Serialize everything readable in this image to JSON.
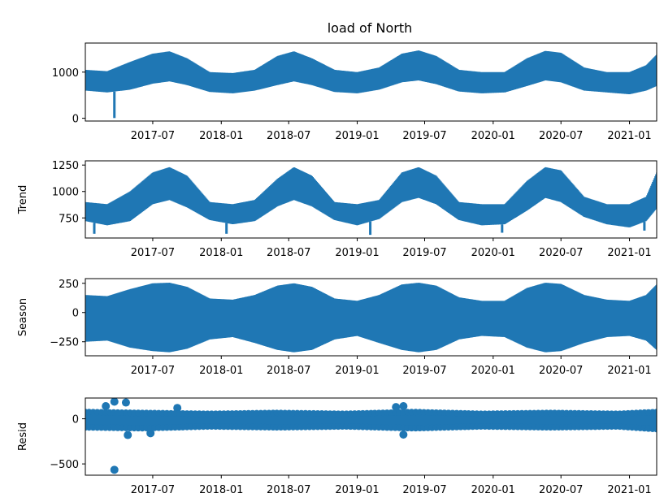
{
  "chart_data": [
    {
      "panel": "observed",
      "type": "line",
      "title": "load of North",
      "ylabel": "",
      "color": "#1f77b4",
      "xlim": [
        "2017-01-01",
        "2021-03-15"
      ],
      "ylim": [
        -60,
        1630
      ],
      "yticks": [
        0,
        1000
      ],
      "ytick_labels": [
        "0",
        "1000"
      ],
      "xticks": [
        "2017-07-01",
        "2018-01-01",
        "2018-07-01",
        "2019-01-01",
        "2019-07-01",
        "2020-01-01",
        "2020-07-01",
        "2021-01-01"
      ],
      "xtick_labels": [
        "2017-07",
        "2018-01",
        "2018-07",
        "2019-01",
        "2019-07",
        "2020-01",
        "2020-07",
        "2021-01"
      ],
      "band": {
        "x": [
          "2017-01-01",
          "2017-03-01",
          "2017-05-01",
          "2017-07-01",
          "2017-08-15",
          "2017-10-01",
          "2017-12-01",
          "2018-02-01",
          "2018-04-01",
          "2018-06-01",
          "2018-07-15",
          "2018-09-01",
          "2018-11-01",
          "2019-01-01",
          "2019-03-01",
          "2019-05-01",
          "2019-06-15",
          "2019-08-01",
          "2019-10-01",
          "2019-12-01",
          "2020-02-01",
          "2020-04-01",
          "2020-05-20",
          "2020-07-01",
          "2020-09-01",
          "2020-11-01",
          "2021-01-01",
          "2021-02-15",
          "2021-03-15"
        ],
        "upper": [
          1050,
          1020,
          1220,
          1400,
          1450,
          1300,
          1000,
          980,
          1050,
          1350,
          1450,
          1300,
          1050,
          1000,
          1100,
          1400,
          1470,
          1350,
          1050,
          1000,
          1000,
          1300,
          1460,
          1420,
          1100,
          1000,
          1000,
          1150,
          1380
        ],
        "lower": [
          600,
          560,
          620,
          750,
          800,
          720,
          570,
          540,
          600,
          720,
          800,
          720,
          570,
          540,
          620,
          780,
          820,
          740,
          580,
          540,
          560,
          700,
          820,
          780,
          600,
          560,
          520,
          600,
          700
        ]
      },
      "spikes": [
        {
          "x": "2017-03-20",
          "y": 5
        }
      ]
    },
    {
      "panel": "trend",
      "type": "line",
      "title": "",
      "ylabel": "Trend",
      "color": "#1f77b4",
      "xlim": [
        "2017-01-01",
        "2021-03-15"
      ],
      "ylim": [
        560,
        1290
      ],
      "yticks": [
        750,
        1000,
        1250
      ],
      "ytick_labels": [
        "750",
        "1000",
        "1250"
      ],
      "xticks": [
        "2017-07-01",
        "2018-01-01",
        "2018-07-01",
        "2019-01-01",
        "2019-07-01",
        "2020-01-01",
        "2020-07-01",
        "2021-01-01"
      ],
      "xtick_labels": [
        "2017-07",
        "2018-01",
        "2018-07",
        "2019-01",
        "2019-07",
        "2020-01",
        "2020-07",
        "2021-01"
      ],
      "band": {
        "x": [
          "2017-01-01",
          "2017-03-01",
          "2017-05-01",
          "2017-07-01",
          "2017-08-15",
          "2017-10-01",
          "2017-12-01",
          "2018-02-01",
          "2018-04-01",
          "2018-06-01",
          "2018-07-15",
          "2018-09-01",
          "2018-11-01",
          "2019-01-01",
          "2019-03-01",
          "2019-05-01",
          "2019-06-15",
          "2019-08-01",
          "2019-10-01",
          "2019-12-01",
          "2020-02-01",
          "2020-04-01",
          "2020-05-20",
          "2020-07-01",
          "2020-09-01",
          "2020-11-01",
          "2021-01-01",
          "2021-02-15",
          "2021-03-15"
        ],
        "upper": [
          900,
          880,
          1000,
          1180,
          1230,
          1150,
          900,
          880,
          920,
          1120,
          1230,
          1150,
          900,
          880,
          920,
          1180,
          1230,
          1150,
          900,
          880,
          880,
          1100,
          1230,
          1200,
          950,
          880,
          880,
          950,
          1180
        ],
        "lower": [
          720,
          680,
          720,
          880,
          920,
          850,
          730,
          690,
          720,
          860,
          920,
          860,
          730,
          680,
          740,
          900,
          940,
          880,
          730,
          680,
          690,
          820,
          940,
          900,
          760,
          690,
          660,
          720,
          840
        ]
      },
      "spikes": [
        {
          "x": "2017-01-25",
          "y": 600
        },
        {
          "x": "2018-01-15",
          "y": 600
        },
        {
          "x": "2019-02-05",
          "y": 590
        },
        {
          "x": "2020-01-25",
          "y": 610
        },
        {
          "x": "2021-02-10",
          "y": 630
        }
      ]
    },
    {
      "panel": "season",
      "type": "line",
      "title": "",
      "ylabel": "Season",
      "color": "#1f77b4",
      "xlim": [
        "2017-01-01",
        "2021-03-15"
      ],
      "ylim": [
        -370,
        290
      ],
      "yticks": [
        -250,
        0,
        250
      ],
      "ytick_labels": [
        "−250",
        "0",
        "250"
      ],
      "xticks": [
        "2017-07-01",
        "2018-01-01",
        "2018-07-01",
        "2019-01-01",
        "2019-07-01",
        "2020-01-01",
        "2020-07-01",
        "2021-01-01"
      ],
      "xtick_labels": [
        "2017-07",
        "2018-01",
        "2018-07",
        "2019-01",
        "2019-07",
        "2020-01",
        "2020-07",
        "2021-01"
      ],
      "band": {
        "x": [
          "2017-01-01",
          "2017-03-01",
          "2017-05-01",
          "2017-07-01",
          "2017-08-15",
          "2017-10-01",
          "2017-12-01",
          "2018-02-01",
          "2018-04-01",
          "2018-06-01",
          "2018-07-15",
          "2018-09-01",
          "2018-11-01",
          "2019-01-01",
          "2019-03-01",
          "2019-05-01",
          "2019-06-15",
          "2019-08-01",
          "2019-10-01",
          "2019-12-01",
          "2020-02-01",
          "2020-04-01",
          "2020-05-20",
          "2020-07-01",
          "2020-09-01",
          "2020-11-01",
          "2021-01-01",
          "2021-02-15",
          "2021-03-15"
        ],
        "upper": [
          150,
          140,
          200,
          250,
          255,
          220,
          120,
          110,
          150,
          230,
          250,
          220,
          120,
          100,
          150,
          240,
          255,
          230,
          130,
          100,
          100,
          210,
          255,
          245,
          150,
          110,
          100,
          150,
          240
        ],
        "lower": [
          -250,
          -240,
          -300,
          -330,
          -340,
          -310,
          -230,
          -210,
          -260,
          -320,
          -340,
          -320,
          -230,
          -200,
          -260,
          -320,
          -340,
          -320,
          -230,
          -200,
          -210,
          -300,
          -340,
          -330,
          -260,
          -210,
          -200,
          -240,
          -320
        ]
      },
      "spikes": []
    },
    {
      "panel": "resid",
      "type": "scatter",
      "title": "",
      "ylabel": "Resid",
      "color": "#1f77b4",
      "xlim": [
        "2017-01-01",
        "2021-03-15"
      ],
      "ylim": [
        -625,
        230
      ],
      "yticks": [
        -500,
        0
      ],
      "ytick_labels": [
        "−500",
        "0"
      ],
      "xticks": [
        "2017-07-01",
        "2018-01-01",
        "2018-07-01",
        "2019-01-01",
        "2019-07-01",
        "2020-01-01",
        "2020-07-01",
        "2021-01-01"
      ],
      "xtick_labels": [
        "2017-07",
        "2018-01",
        "2018-07",
        "2019-01",
        "2019-07",
        "2020-01",
        "2020-07",
        "2021-01"
      ],
      "band": {
        "x": [
          "2017-01-01",
          "2017-06-01",
          "2017-12-01",
          "2018-06-01",
          "2018-12-01",
          "2019-06-01",
          "2019-12-01",
          "2020-06-01",
          "2020-12-01",
          "2021-03-15"
        ],
        "upper": [
          90,
          80,
          70,
          80,
          70,
          90,
          70,
          80,
          70,
          90
        ],
        "lower": [
          -110,
          -120,
          -100,
          -110,
          -100,
          -120,
          -100,
          -110,
          -100,
          -130
        ]
      },
      "spikes": [
        {
          "x": "2017-02-25",
          "y": 140
        },
        {
          "x": "2017-03-20",
          "y": 190
        },
        {
          "x": "2017-04-20",
          "y": 180
        },
        {
          "x": "2017-03-20",
          "y": -565
        },
        {
          "x": "2017-04-25",
          "y": -180
        },
        {
          "x": "2017-06-25",
          "y": -160
        },
        {
          "x": "2017-09-05",
          "y": 120
        },
        {
          "x": "2019-04-15",
          "y": 130
        },
        {
          "x": "2019-05-05",
          "y": 140
        },
        {
          "x": "2019-05-05",
          "y": -175
        }
      ]
    }
  ]
}
